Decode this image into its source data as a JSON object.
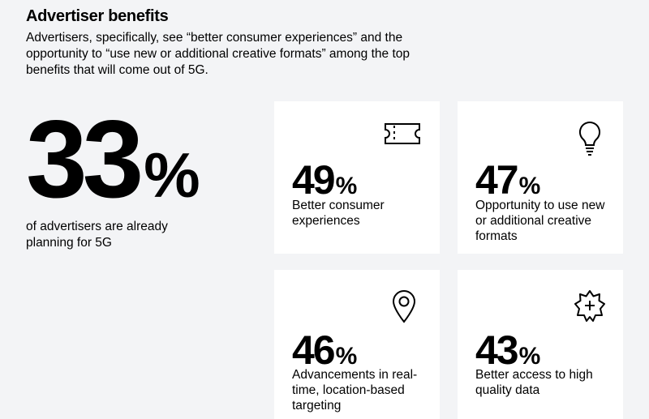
{
  "header": {
    "title": "Advertiser benefits",
    "intro": "Advertisers, specifically, see “better consumer experiences” and the opportunity to “use new or additional creative formats” among the top benefits that will come out of 5G."
  },
  "hero": {
    "value": "33",
    "unit": "%",
    "description": "of advertisers are already planning for 5G"
  },
  "cards": [
    {
      "icon": "ticket-icon",
      "value": "49",
      "unit": "%",
      "label": "Better consumer experiences"
    },
    {
      "icon": "lightbulb-icon",
      "value": "47",
      "unit": "%",
      "label": "Opportunity to use new or additional creative formats"
    },
    {
      "icon": "location-pin-icon",
      "value": "46",
      "unit": "%",
      "label": "Advancements in real-time, location-based targeting"
    },
    {
      "icon": "starburst-plus-icon",
      "value": "43",
      "unit": "%",
      "label": "Better access to high quality data"
    }
  ]
}
